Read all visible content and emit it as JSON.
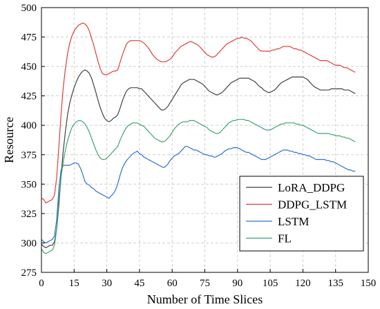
{
  "chart_data": {
    "type": "line",
    "title": "",
    "xlabel": "Number of Time Slices",
    "ylabel": "Resource",
    "xlim": [
      0,
      150
    ],
    "ylim": [
      275,
      500
    ],
    "xticks": [
      0,
      15,
      30,
      45,
      60,
      75,
      90,
      105,
      120,
      135,
      150
    ],
    "yticks": [
      275,
      300,
      325,
      350,
      375,
      400,
      425,
      450,
      475,
      500
    ],
    "grid": true,
    "legend_position": "bottom-right",
    "series": [
      {
        "name": "LoRA_DDPG",
        "color": "#404040",
        "x": [
          0,
          1,
          2,
          3,
          4,
          5,
          6,
          7,
          8,
          9,
          10,
          11,
          12,
          13,
          14,
          15,
          16,
          17,
          18,
          19,
          20,
          21,
          22,
          23,
          24,
          25,
          26,
          27,
          28,
          29,
          30,
          31,
          32,
          33,
          34,
          35,
          36,
          37,
          38,
          39,
          40,
          41,
          42,
          43,
          44,
          45,
          46,
          47,
          48,
          49,
          50,
          51,
          52,
          53,
          54,
          55,
          56,
          57,
          58,
          59,
          60,
          61,
          62,
          63,
          64,
          65,
          66,
          67,
          68,
          69,
          70,
          71,
          72,
          73,
          74,
          75,
          76,
          77,
          78,
          79,
          80,
          81,
          82,
          83,
          84,
          85,
          86,
          87,
          88,
          89,
          90,
          91,
          92,
          93,
          94,
          95,
          96,
          97,
          98,
          99,
          100,
          101,
          102,
          103,
          104,
          105,
          106,
          107,
          108,
          109,
          110,
          111,
          112,
          113,
          114,
          115,
          116,
          117,
          118,
          119,
          120,
          121,
          122,
          123,
          124,
          125,
          126,
          127,
          128,
          129,
          130,
          131,
          132,
          133,
          134,
          135,
          136,
          137,
          138,
          139,
          140,
          141,
          142,
          143,
          144
        ],
        "y": [
          299,
          297,
          296,
          297,
          298,
          298,
          301,
          312,
          332,
          357,
          378,
          395,
          409,
          419,
          426,
          432,
          437,
          441,
          444,
          446,
          447,
          446,
          444,
          440,
          434,
          428,
          421,
          415,
          410,
          406,
          404,
          403,
          404,
          406,
          407,
          409,
          414,
          420,
          425,
          429,
          431,
          432,
          432,
          432,
          432,
          431,
          431,
          429,
          427,
          425,
          423,
          421,
          419,
          417,
          415,
          413,
          413,
          414,
          416,
          419,
          422,
          425,
          428,
          431,
          434,
          436,
          437,
          438,
          439,
          439,
          439,
          438,
          437,
          436,
          435,
          433,
          431,
          429,
          428,
          427,
          426,
          426,
          427,
          428,
          430,
          432,
          434,
          436,
          437,
          438,
          439,
          440,
          440,
          440,
          440,
          440,
          439,
          438,
          437,
          435,
          433,
          432,
          430,
          429,
          428,
          428,
          429,
          430,
          432,
          434,
          436,
          437,
          438,
          439,
          440,
          441,
          441,
          441,
          441,
          441,
          441,
          440,
          439,
          437,
          435,
          433,
          432,
          431,
          430,
          430,
          430,
          430,
          430,
          431,
          431,
          431,
          431,
          431,
          431,
          430,
          430,
          430,
          429,
          428,
          427
        ]
      },
      {
        "name": "DDPG_LSTM",
        "color": "#e03c3c",
        "x": [
          0,
          1,
          2,
          3,
          4,
          5,
          6,
          7,
          8,
          9,
          10,
          11,
          12,
          13,
          14,
          15,
          16,
          17,
          18,
          19,
          20,
          21,
          22,
          23,
          24,
          25,
          26,
          27,
          28,
          29,
          30,
          31,
          32,
          33,
          34,
          35,
          36,
          37,
          38,
          39,
          40,
          41,
          42,
          43,
          44,
          45,
          46,
          47,
          48,
          49,
          50,
          51,
          52,
          53,
          54,
          55,
          56,
          57,
          58,
          59,
          60,
          61,
          62,
          63,
          64,
          65,
          66,
          67,
          68,
          69,
          70,
          71,
          72,
          73,
          74,
          75,
          76,
          77,
          78,
          79,
          80,
          81,
          82,
          83,
          84,
          85,
          86,
          87,
          88,
          89,
          90,
          91,
          92,
          93,
          94,
          95,
          96,
          97,
          98,
          99,
          100,
          101,
          102,
          103,
          104,
          105,
          106,
          107,
          108,
          109,
          110,
          111,
          112,
          113,
          114,
          115,
          116,
          117,
          118,
          119,
          120,
          121,
          122,
          123,
          124,
          125,
          126,
          127,
          128,
          129,
          130,
          131,
          132,
          133,
          134,
          135,
          136,
          137,
          138,
          139,
          140,
          141,
          142,
          143,
          144
        ],
        "y": [
          338,
          337,
          334,
          335,
          336,
          337,
          341,
          356,
          382,
          410,
          432,
          448,
          461,
          470,
          476,
          480,
          483,
          485,
          486,
          487,
          486,
          484,
          480,
          474,
          468,
          461,
          454,
          448,
          444,
          443,
          443,
          444,
          445,
          446,
          446,
          447,
          453,
          459,
          464,
          469,
          471,
          472,
          472,
          472,
          472,
          472,
          471,
          470,
          468,
          466,
          463,
          460,
          458,
          456,
          455,
          454,
          454,
          454,
          455,
          456,
          458,
          461,
          463,
          465,
          467,
          468,
          469,
          470,
          471,
          471,
          470,
          469,
          468,
          466,
          464,
          462,
          460,
          459,
          458,
          458,
          459,
          461,
          463,
          465,
          467,
          469,
          470,
          471,
          472,
          473,
          474,
          474,
          475,
          474,
          474,
          473,
          472,
          470,
          468,
          466,
          464,
          463,
          463,
          463,
          463,
          463,
          464,
          464,
          465,
          465,
          466,
          467,
          467,
          467,
          467,
          466,
          465,
          465,
          464,
          464,
          463,
          462,
          461,
          460,
          459,
          458,
          457,
          456,
          455,
          455,
          455,
          455,
          454,
          453,
          452,
          451,
          451,
          451,
          450,
          449,
          449,
          448,
          447,
          446,
          445
        ]
      },
      {
        "name": "LSTM",
        "color": "#2e6fd1",
        "x": [
          0,
          1,
          2,
          3,
          4,
          5,
          6,
          7,
          8,
          9,
          10,
          11,
          12,
          13,
          14,
          15,
          16,
          17,
          18,
          19,
          20,
          21,
          22,
          23,
          24,
          25,
          26,
          27,
          28,
          29,
          30,
          31,
          32,
          33,
          34,
          35,
          36,
          37,
          38,
          39,
          40,
          41,
          42,
          43,
          44,
          45,
          46,
          47,
          48,
          49,
          50,
          51,
          52,
          53,
          54,
          55,
          56,
          57,
          58,
          59,
          60,
          61,
          62,
          63,
          64,
          65,
          66,
          67,
          68,
          69,
          70,
          71,
          72,
          73,
          74,
          75,
          76,
          77,
          78,
          79,
          80,
          81,
          82,
          83,
          84,
          85,
          86,
          87,
          88,
          89,
          90,
          91,
          92,
          93,
          94,
          95,
          96,
          97,
          98,
          99,
          100,
          101,
          102,
          103,
          104,
          105,
          106,
          107,
          108,
          109,
          110,
          111,
          112,
          113,
          114,
          115,
          116,
          117,
          118,
          119,
          120,
          121,
          122,
          123,
          124,
          125,
          126,
          127,
          128,
          129,
          130,
          131,
          132,
          133,
          134,
          135,
          136,
          137,
          138,
          139,
          140,
          141,
          142,
          143,
          144
        ],
        "y": [
          303,
          301,
          300,
          301,
          302,
          303,
          306,
          320,
          346,
          362,
          366,
          366,
          366,
          366,
          367,
          368,
          368,
          367,
          363,
          358,
          352,
          350,
          349,
          347,
          346,
          344,
          343,
          342,
          341,
          340,
          339,
          338,
          340,
          342,
          345,
          350,
          357,
          363,
          367,
          370,
          372,
          374,
          376,
          377,
          378,
          376,
          375,
          373,
          372,
          371,
          370,
          369,
          368,
          367,
          366,
          365,
          364,
          365,
          367,
          370,
          372,
          374,
          375,
          376,
          378,
          380,
          382,
          382,
          381,
          380,
          379,
          379,
          378,
          377,
          376,
          375,
          375,
          374,
          374,
          373,
          373,
          374,
          375,
          376,
          378,
          379,
          380,
          380,
          381,
          381,
          381,
          380,
          379,
          378,
          377,
          377,
          376,
          375,
          374,
          373,
          372,
          371,
          371,
          371,
          372,
          373,
          374,
          375,
          376,
          377,
          378,
          379,
          379,
          379,
          378,
          378,
          377,
          377,
          376,
          376,
          375,
          375,
          374,
          374,
          373,
          372,
          371,
          371,
          371,
          371,
          371,
          370,
          370,
          369,
          369,
          368,
          367,
          366,
          365,
          364,
          363,
          362,
          362,
          361,
          361
        ]
      },
      {
        "name": "FL",
        "color": "#3aa56e",
        "x": [
          0,
          1,
          2,
          3,
          4,
          5,
          6,
          7,
          8,
          9,
          10,
          11,
          12,
          13,
          14,
          15,
          16,
          17,
          18,
          19,
          20,
          21,
          22,
          23,
          24,
          25,
          26,
          27,
          28,
          29,
          30,
          31,
          32,
          33,
          34,
          35,
          36,
          37,
          38,
          39,
          40,
          41,
          42,
          43,
          44,
          45,
          46,
          47,
          48,
          49,
          50,
          51,
          52,
          53,
          54,
          55,
          56,
          57,
          58,
          59,
          60,
          61,
          62,
          63,
          64,
          65,
          66,
          67,
          68,
          69,
          70,
          71,
          72,
          73,
          74,
          75,
          76,
          77,
          78,
          79,
          80,
          81,
          82,
          83,
          84,
          85,
          86,
          87,
          88,
          89,
          90,
          91,
          92,
          93,
          94,
          95,
          96,
          97,
          98,
          99,
          100,
          101,
          102,
          103,
          104,
          105,
          106,
          107,
          108,
          109,
          110,
          111,
          112,
          113,
          114,
          115,
          116,
          117,
          118,
          119,
          120,
          121,
          122,
          123,
          124,
          125,
          126,
          127,
          128,
          129,
          130,
          131,
          132,
          133,
          134,
          135,
          136,
          137,
          138,
          139,
          140,
          141,
          142,
          143,
          144
        ],
        "y": [
          295,
          292,
          291,
          292,
          293,
          294,
          298,
          312,
          337,
          356,
          369,
          379,
          387,
          393,
          398,
          401,
          403,
          404,
          404,
          403,
          401,
          398,
          394,
          389,
          384,
          379,
          375,
          372,
          371,
          371,
          372,
          374,
          376,
          378,
          380,
          382,
          387,
          391,
          395,
          398,
          400,
          401,
          402,
          402,
          402,
          401,
          400,
          399,
          397,
          395,
          393,
          391,
          389,
          388,
          387,
          386,
          386,
          387,
          389,
          391,
          394,
          397,
          399,
          401,
          402,
          403,
          403,
          403,
          404,
          404,
          404,
          403,
          402,
          401,
          400,
          399,
          398,
          396,
          395,
          394,
          393,
          393,
          394,
          396,
          398,
          400,
          402,
          403,
          404,
          404,
          405,
          405,
          405,
          405,
          404,
          404,
          403,
          402,
          401,
          400,
          399,
          398,
          397,
          396,
          396,
          396,
          397,
          398,
          399,
          400,
          401,
          401,
          402,
          402,
          402,
          402,
          402,
          401,
          401,
          400,
          400,
          399,
          398,
          397,
          396,
          395,
          394,
          393,
          393,
          393,
          393,
          393,
          393,
          392,
          392,
          391,
          391,
          391,
          390,
          390,
          389,
          389,
          388,
          387,
          386
        ]
      }
    ]
  }
}
